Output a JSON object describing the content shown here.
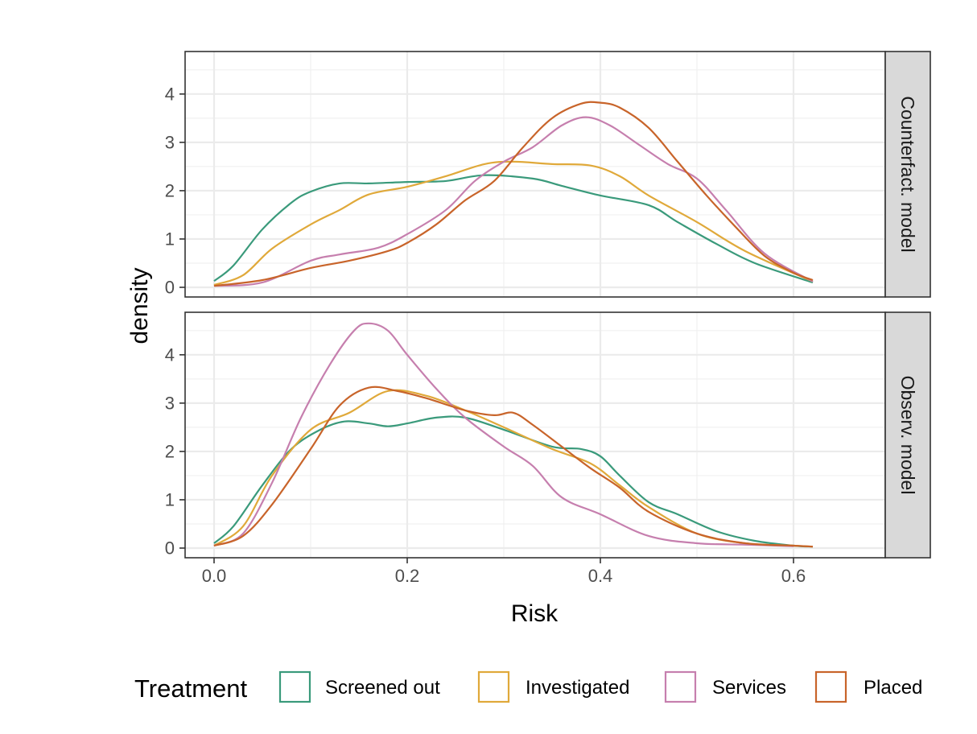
{
  "chart_data": {
    "type": "line",
    "subtype": "density",
    "xlabel": "Risk",
    "ylabel": "density",
    "xlim": [
      -0.03,
      0.695
    ],
    "ylim": [
      -0.2,
      4.88
    ],
    "x_ticks": [
      0.0,
      0.2,
      0.4,
      0.6
    ],
    "x_tick_labels": [
      "0.0",
      "0.2",
      "0.4",
      "0.6"
    ],
    "y_ticks": [
      0,
      1,
      2,
      3,
      4
    ],
    "y_tick_labels": [
      "0",
      "1",
      "2",
      "3",
      "4"
    ],
    "grid": true,
    "legend": {
      "title": "Treatment",
      "position": "bottom",
      "entries": [
        "Screened out",
        "Investigated",
        "Services",
        "Placed"
      ]
    },
    "colors": {
      "Screened out": "#3a9a7b",
      "Investigated": "#e0a93a",
      "Services": "#c67fae",
      "Placed": "#c8642a"
    },
    "panels": [
      {
        "strip": "Counterfact. model",
        "series": [
          {
            "name": "Screened out",
            "points": [
              [
                0.0,
                0.13
              ],
              [
                0.02,
                0.45
              ],
              [
                0.05,
                1.2
              ],
              [
                0.08,
                1.75
              ],
              [
                0.1,
                1.98
              ],
              [
                0.13,
                2.15
              ],
              [
                0.16,
                2.15
              ],
              [
                0.2,
                2.18
              ],
              [
                0.24,
                2.2
              ],
              [
                0.28,
                2.32
              ],
              [
                0.33,
                2.25
              ],
              [
                0.36,
                2.1
              ],
              [
                0.4,
                1.9
              ],
              [
                0.45,
                1.7
              ],
              [
                0.48,
                1.35
              ],
              [
                0.52,
                0.9
              ],
              [
                0.56,
                0.5
              ],
              [
                0.62,
                0.1
              ]
            ]
          },
          {
            "name": "Investigated",
            "points": [
              [
                0.0,
                0.05
              ],
              [
                0.03,
                0.25
              ],
              [
                0.06,
                0.8
              ],
              [
                0.1,
                1.3
              ],
              [
                0.13,
                1.6
              ],
              [
                0.16,
                1.92
              ],
              [
                0.2,
                2.08
              ],
              [
                0.24,
                2.3
              ],
              [
                0.28,
                2.55
              ],
              [
                0.31,
                2.6
              ],
              [
                0.35,
                2.55
              ],
              [
                0.39,
                2.52
              ],
              [
                0.42,
                2.3
              ],
              [
                0.45,
                1.9
              ],
              [
                0.5,
                1.35
              ],
              [
                0.55,
                0.75
              ],
              [
                0.62,
                0.12
              ]
            ]
          },
          {
            "name": "Services",
            "points": [
              [
                0.0,
                0.03
              ],
              [
                0.05,
                0.1
              ],
              [
                0.1,
                0.55
              ],
              [
                0.13,
                0.68
              ],
              [
                0.17,
                0.82
              ],
              [
                0.2,
                1.1
              ],
              [
                0.24,
                1.6
              ],
              [
                0.27,
                2.2
              ],
              [
                0.3,
                2.6
              ],
              [
                0.33,
                2.9
              ],
              [
                0.36,
                3.35
              ],
              [
                0.385,
                3.52
              ],
              [
                0.41,
                3.35
              ],
              [
                0.44,
                2.95
              ],
              [
                0.47,
                2.55
              ],
              [
                0.5,
                2.25
              ],
              [
                0.53,
                1.6
              ],
              [
                0.57,
                0.7
              ],
              [
                0.62,
                0.12
              ]
            ]
          },
          {
            "name": "Placed",
            "points": [
              [
                0.0,
                0.03
              ],
              [
                0.05,
                0.15
              ],
              [
                0.1,
                0.4
              ],
              [
                0.14,
                0.55
              ],
              [
                0.18,
                0.75
              ],
              [
                0.2,
                0.92
              ],
              [
                0.23,
                1.3
              ],
              [
                0.26,
                1.8
              ],
              [
                0.29,
                2.2
              ],
              [
                0.32,
                2.9
              ],
              [
                0.35,
                3.5
              ],
              [
                0.38,
                3.8
              ],
              [
                0.4,
                3.82
              ],
              [
                0.42,
                3.72
              ],
              [
                0.45,
                3.3
              ],
              [
                0.48,
                2.6
              ],
              [
                0.51,
                1.9
              ],
              [
                0.54,
                1.25
              ],
              [
                0.57,
                0.65
              ],
              [
                0.6,
                0.3
              ],
              [
                0.62,
                0.15
              ]
            ]
          }
        ]
      },
      {
        "strip": "Observ. model",
        "series": [
          {
            "name": "Screened out",
            "points": [
              [
                0.0,
                0.1
              ],
              [
                0.02,
                0.45
              ],
              [
                0.05,
                1.3
              ],
              [
                0.08,
                2.05
              ],
              [
                0.11,
                2.45
              ],
              [
                0.135,
                2.62
              ],
              [
                0.16,
                2.58
              ],
              [
                0.18,
                2.52
              ],
              [
                0.2,
                2.58
              ],
              [
                0.23,
                2.7
              ],
              [
                0.26,
                2.7
              ],
              [
                0.3,
                2.45
              ],
              [
                0.35,
                2.1
              ],
              [
                0.38,
                2.05
              ],
              [
                0.4,
                1.9
              ],
              [
                0.42,
                1.5
              ],
              [
                0.45,
                0.95
              ],
              [
                0.48,
                0.7
              ],
              [
                0.52,
                0.35
              ],
              [
                0.56,
                0.15
              ],
              [
                0.6,
                0.05
              ],
              [
                0.62,
                0.03
              ]
            ]
          },
          {
            "name": "Investigated",
            "points": [
              [
                0.0,
                0.05
              ],
              [
                0.03,
                0.45
              ],
              [
                0.06,
                1.5
              ],
              [
                0.1,
                2.45
              ],
              [
                0.14,
                2.8
              ],
              [
                0.18,
                3.25
              ],
              [
                0.22,
                3.15
              ],
              [
                0.26,
                2.85
              ],
              [
                0.3,
                2.5
              ],
              [
                0.35,
                2.05
              ],
              [
                0.39,
                1.75
              ],
              [
                0.42,
                1.3
              ],
              [
                0.45,
                0.85
              ],
              [
                0.5,
                0.3
              ],
              [
                0.55,
                0.1
              ],
              [
                0.6,
                0.05
              ],
              [
                0.62,
                0.03
              ]
            ]
          },
          {
            "name": "Services",
            "points": [
              [
                0.0,
                0.05
              ],
              [
                0.03,
                0.3
              ],
              [
                0.06,
                1.35
              ],
              [
                0.09,
                2.7
              ],
              [
                0.12,
                3.8
              ],
              [
                0.145,
                4.5
              ],
              [
                0.16,
                4.65
              ],
              [
                0.18,
                4.5
              ],
              [
                0.2,
                4.0
              ],
              [
                0.23,
                3.3
              ],
              [
                0.26,
                2.7
              ],
              [
                0.3,
                2.1
              ],
              [
                0.33,
                1.7
              ],
              [
                0.36,
                1.05
              ],
              [
                0.4,
                0.7
              ],
              [
                0.45,
                0.25
              ],
              [
                0.5,
                0.1
              ],
              [
                0.55,
                0.07
              ],
              [
                0.6,
                0.04
              ]
            ]
          },
          {
            "name": "Placed",
            "points": [
              [
                0.0,
                0.05
              ],
              [
                0.03,
                0.25
              ],
              [
                0.06,
                0.9
              ],
              [
                0.1,
                2.05
              ],
              [
                0.13,
                2.95
              ],
              [
                0.16,
                3.32
              ],
              [
                0.19,
                3.25
              ],
              [
                0.22,
                3.1
              ],
              [
                0.26,
                2.85
              ],
              [
                0.29,
                2.75
              ],
              [
                0.31,
                2.8
              ],
              [
                0.33,
                2.55
              ],
              [
                0.36,
                2.1
              ],
              [
                0.39,
                1.65
              ],
              [
                0.42,
                1.25
              ],
              [
                0.45,
                0.75
              ],
              [
                0.5,
                0.3
              ],
              [
                0.55,
                0.1
              ],
              [
                0.6,
                0.05
              ],
              [
                0.62,
                0.03
              ]
            ]
          }
        ]
      }
    ]
  }
}
